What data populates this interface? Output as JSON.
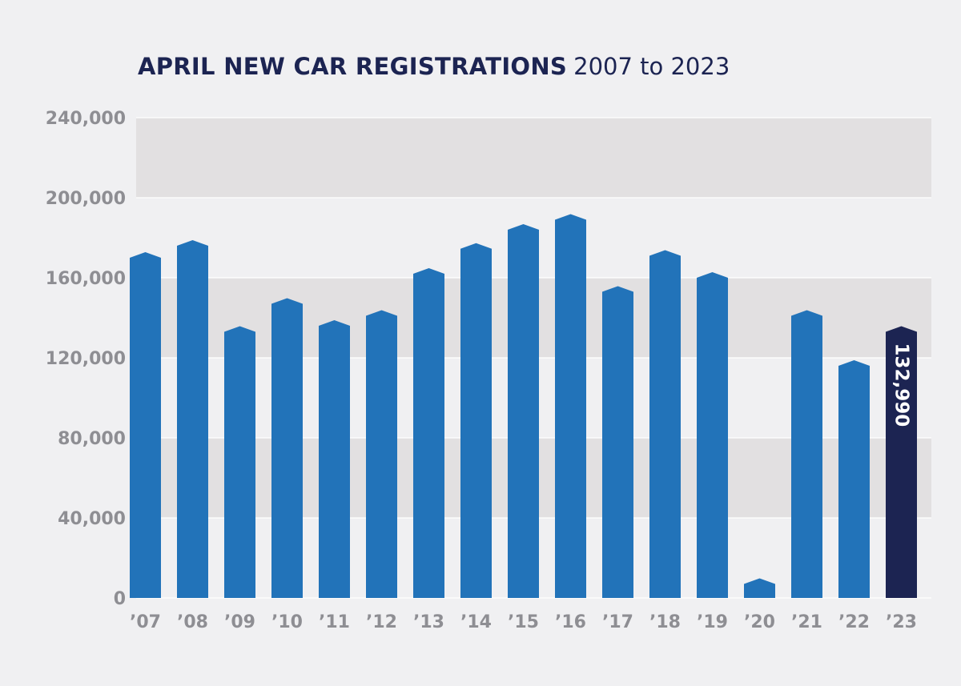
{
  "colors": {
    "background": "#f0f0f2",
    "band": "#e2e0e1",
    "bar": "#2273b9",
    "highlight_bar": "#1c2452",
    "tick_text": "#8e8e93",
    "title": "#1c2452"
  },
  "chart_data": {
    "type": "bar",
    "title": "APRIL NEW CAR REGISTRATIONS",
    "subtitle": "2007 to 2023",
    "xlabel": "",
    "ylabel": "",
    "ylim": [
      0,
      240000
    ],
    "yticks": [
      0,
      40000,
      80000,
      120000,
      160000,
      200000,
      240000
    ],
    "ytick_labels": [
      "0",
      "40,000",
      "80,000",
      "120,000",
      "160,000",
      "200,000",
      "240,000"
    ],
    "categories": [
      "’07",
      "’08",
      "’09",
      "’10",
      "’11",
      "’12",
      "’13",
      "’14",
      "’15",
      "’16",
      "’17",
      "’18",
      "’19",
      "’20",
      "’21",
      "’22",
      "’23"
    ],
    "values": [
      170000,
      176000,
      133000,
      147000,
      136000,
      141000,
      162000,
      174500,
      184000,
      189000,
      153000,
      171000,
      160000,
      7000,
      141000,
      116000,
      132990
    ],
    "highlight_index": 16,
    "data_labels": [
      {
        "index": 16,
        "text": "132,990"
      }
    ],
    "grid": "alternating horizontal bands",
    "legend": "none"
  }
}
